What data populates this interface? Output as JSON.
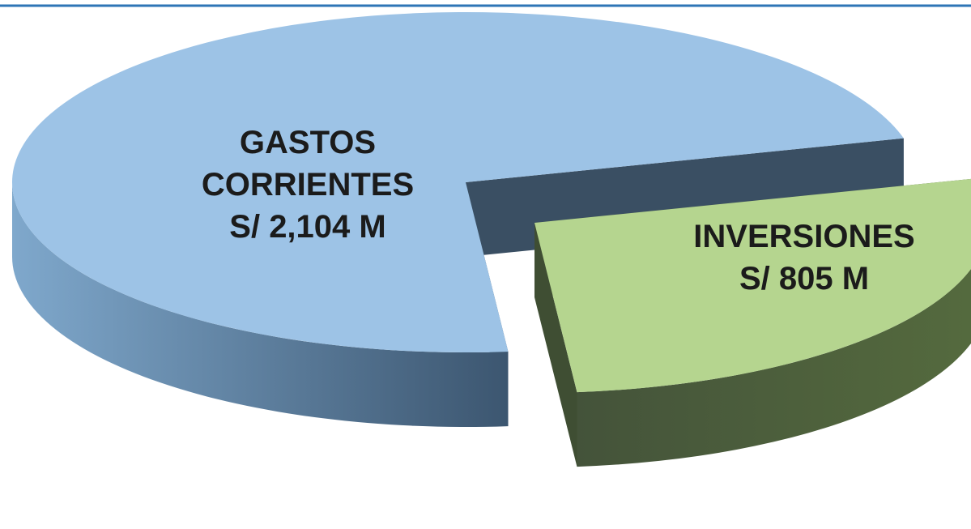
{
  "chart_data": {
    "type": "pie",
    "categories": [
      "GASTOS CORRIENTES",
      "INVERSIONES"
    ],
    "values": [
      2104,
      805
    ],
    "value_labels": [
      "S/ 2,104 M",
      "S/ 805 M"
    ],
    "colors": [
      "#9dc3e6",
      "#b5d58f"
    ]
  }
}
